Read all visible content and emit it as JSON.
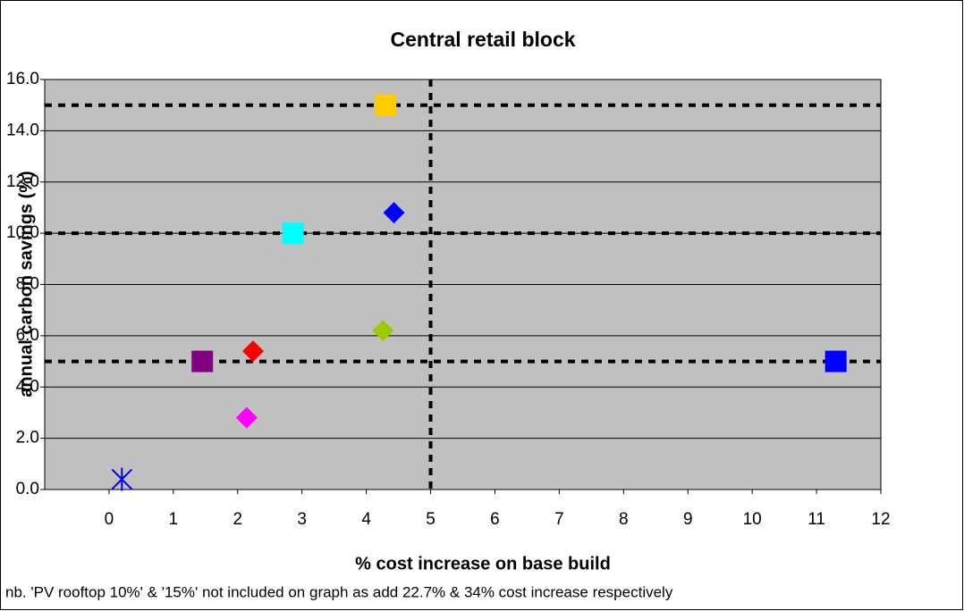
{
  "chart_data": {
    "type": "scatter",
    "title": "Central retail block",
    "xlabel": "% cost increase on base build",
    "ylabel": "annual carbon savings (%)",
    "note": "nb. 'PV rooftop 10%' & '15%' not included on graph as add 22.7% & 34% cost increase respectively",
    "xlim": [
      -1,
      12
    ],
    "xticks": [
      0,
      1,
      2,
      3,
      4,
      5,
      6,
      7,
      8,
      9,
      10,
      11,
      12
    ],
    "ylim": [
      0,
      16
    ],
    "yticks": [
      {
        "value": 0,
        "label": "0.0"
      },
      {
        "value": 2,
        "label": "2.0"
      },
      {
        "value": 4,
        "label": "4.0"
      },
      {
        "value": 6,
        "label": "6.0"
      },
      {
        "value": 8,
        "label": "8.0"
      },
      {
        "value": 10,
        "label": "10.0"
      },
      {
        "value": 12,
        "label": "12.0"
      },
      {
        "value": 14,
        "label": "14.0"
      },
      {
        "value": 16,
        "label": "16.0"
      }
    ],
    "grid": true,
    "plot_background": "#c0c0c0",
    "reference_lines": {
      "x": [
        5
      ],
      "y": [
        5,
        10,
        15
      ]
    },
    "series": [
      {
        "color": "#0000ff",
        "marker": "asterisk",
        "x": [
          0.2
        ],
        "values": [
          0.4
        ]
      },
      {
        "color": "#800080",
        "marker": "square",
        "x": [
          1.45
        ],
        "values": [
          5
        ]
      },
      {
        "color": "#ff00ff",
        "marker": "diamond",
        "x": [
          2.14
        ],
        "values": [
          2.8
        ]
      },
      {
        "color": "#ff0000",
        "marker": "diamond",
        "x": [
          2.24
        ],
        "values": [
          5.4
        ]
      },
      {
        "color": "#00ffff",
        "marker": "square",
        "x": [
          2.86
        ],
        "values": [
          10
        ]
      },
      {
        "color": "#ffcc00",
        "marker": "square",
        "x": [
          4.3
        ],
        "values": [
          15
        ]
      },
      {
        "color": "#0000ff",
        "marker": "diamond",
        "x": [
          4.43
        ],
        "values": [
          10.8
        ]
      },
      {
        "color": "#99cc00",
        "marker": "diamond",
        "x": [
          4.26
        ],
        "values": [
          6.2
        ]
      },
      {
        "color": "#0000ff",
        "marker": "square",
        "x": [
          11.3
        ],
        "values": [
          5
        ]
      }
    ]
  }
}
